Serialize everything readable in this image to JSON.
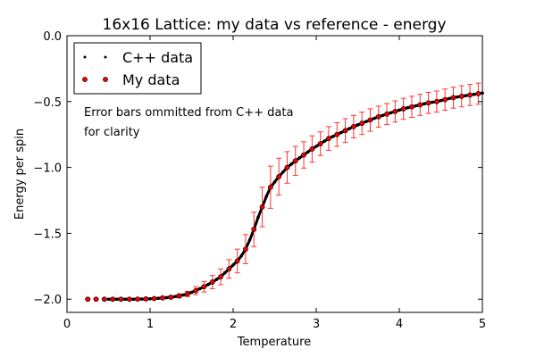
{
  "chart_data": {
    "type": "scatter",
    "title": "16x16 Lattice: my data vs reference - energy",
    "xlabel": "Temperature",
    "ylabel": "Energy per spin",
    "xlim": [
      0,
      5
    ],
    "ylim": [
      -2.1,
      0.0
    ],
    "xticks": [
      "0",
      "1",
      "2",
      "3",
      "4",
      "5"
    ],
    "yticks": [
      "0.0",
      "−0.5",
      "−1.0",
      "−1.5",
      "−2.0"
    ],
    "ytick_values": [
      0.0,
      -0.5,
      -1.0,
      -1.5,
      -2.0
    ],
    "xtick_values": [
      0,
      1,
      2,
      3,
      4,
      5
    ],
    "grid": false,
    "legend_position": "top-left",
    "annotation": [
      "Error bars ommitted from C++ data",
      "for clarity"
    ],
    "series": [
      {
        "name": "C++ data",
        "color": "#000000",
        "x_start": 0.5,
        "x_step": 0.05,
        "y": [
          -2.0,
          -2.0,
          -2.0,
          -2.0,
          -2.0,
          -2.0,
          -2.0,
          -1.999,
          -1.999,
          -1.998,
          -1.997,
          -1.995,
          -1.993,
          -1.99,
          -1.988,
          -1.985,
          -1.98,
          -1.975,
          -1.968,
          -1.96,
          -1.948,
          -1.935,
          -1.92,
          -1.905,
          -1.888,
          -1.87,
          -1.85,
          -1.83,
          -1.8,
          -1.77,
          -1.74,
          -1.71,
          -1.67,
          -1.62,
          -1.55,
          -1.47,
          -1.38,
          -1.3,
          -1.22,
          -1.15,
          -1.11,
          -1.07,
          -1.035,
          -1.0,
          -0.975,
          -0.95,
          -0.927,
          -0.905,
          -0.882,
          -0.86,
          -0.84,
          -0.82,
          -0.8,
          -0.78,
          -0.765,
          -0.75,
          -0.735,
          -0.72,
          -0.705,
          -0.69,
          -0.677,
          -0.665,
          -0.652,
          -0.64,
          -0.627,
          -0.615,
          -0.605,
          -0.595,
          -0.585,
          -0.575,
          -0.565,
          -0.555,
          -0.547,
          -0.54,
          -0.532,
          -0.525,
          -0.517,
          -0.51,
          -0.505,
          -0.5,
          -0.492,
          -0.485,
          -0.477,
          -0.47,
          -0.465,
          -0.46,
          -0.455,
          -0.45,
          -0.445,
          -0.44,
          -0.435
        ]
      },
      {
        "name": "My data",
        "color": "#ff0000",
        "x_start": 0.25,
        "x_step": 0.1,
        "y": [
          -2.0,
          -2.0,
          -2.0,
          -2.0,
          -2.0,
          -2.0,
          -1.999,
          -1.998,
          -1.995,
          -1.99,
          -1.985,
          -1.975,
          -1.96,
          -1.935,
          -1.905,
          -1.87,
          -1.83,
          -1.77,
          -1.71,
          -1.62,
          -1.47,
          -1.3,
          -1.15,
          -1.07,
          -1.0,
          -0.95,
          -0.905,
          -0.86,
          -0.82,
          -0.78,
          -0.75,
          -0.72,
          -0.69,
          -0.665,
          -0.64,
          -0.615,
          -0.595,
          -0.575,
          -0.555,
          -0.54,
          -0.525,
          -0.51,
          -0.5,
          -0.485,
          -0.47,
          -0.46,
          -0.45,
          -0.44
        ],
        "yerr": [
          0.002,
          0.002,
          0.002,
          0.002,
          0.002,
          0.003,
          0.003,
          0.004,
          0.005,
          0.007,
          0.01,
          0.015,
          0.02,
          0.03,
          0.04,
          0.05,
          0.06,
          0.07,
          0.09,
          0.11,
          0.13,
          0.15,
          0.16,
          0.14,
          0.12,
          0.11,
          0.1,
          0.1,
          0.09,
          0.09,
          0.09,
          0.09,
          0.085,
          0.085,
          0.085,
          0.08,
          0.08,
          0.08,
          0.08,
          0.08,
          0.08,
          0.08,
          0.08,
          0.08,
          0.08,
          0.08,
          0.08,
          0.08
        ]
      }
    ]
  }
}
